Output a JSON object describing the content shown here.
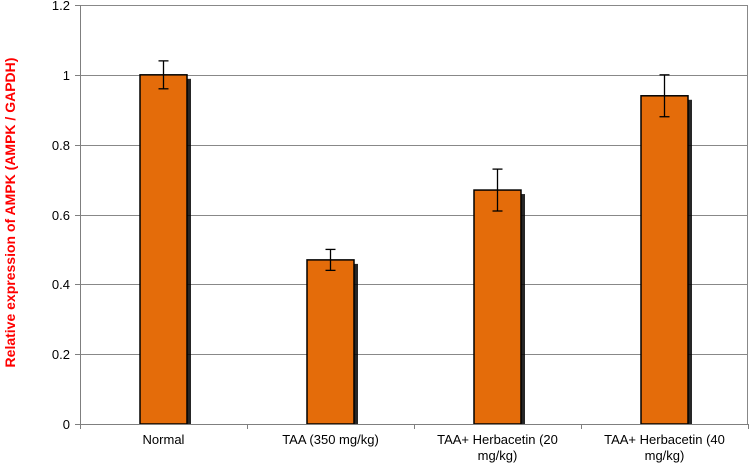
{
  "chart_data": {
    "type": "bar",
    "title": "",
    "xlabel": "",
    "ylabel": "Relative expression of AMPK (AMPK / GAPDH)",
    "ylim": [
      0,
      1.2
    ],
    "yticks": [
      0,
      0.2,
      0.4,
      0.6,
      0.8,
      1,
      1.2
    ],
    "ytick_labels": [
      "0",
      "0.2",
      "0.4",
      "0.6",
      "0.8",
      "1",
      "1.2"
    ],
    "grid": true,
    "legend": "none",
    "categories": [
      [
        "Normal"
      ],
      [
        "TAA (350 mg/kg)"
      ],
      [
        "TAA+ Herbacetin (20",
        "mg/kg)"
      ],
      [
        "TAA+ Herbacetin (40",
        "mg/kg)"
      ]
    ],
    "values": [
      1.0,
      0.47,
      0.67,
      0.94
    ],
    "errors": [
      0.04,
      0.03,
      0.06,
      0.06
    ],
    "colors": {
      "bar_fill": "#E46C0A",
      "bar_edge": "#000000",
      "shadow": "#000000",
      "ylabel": "#FF0000",
      "grid": "#888888",
      "axis": "#7F7F7F"
    }
  }
}
